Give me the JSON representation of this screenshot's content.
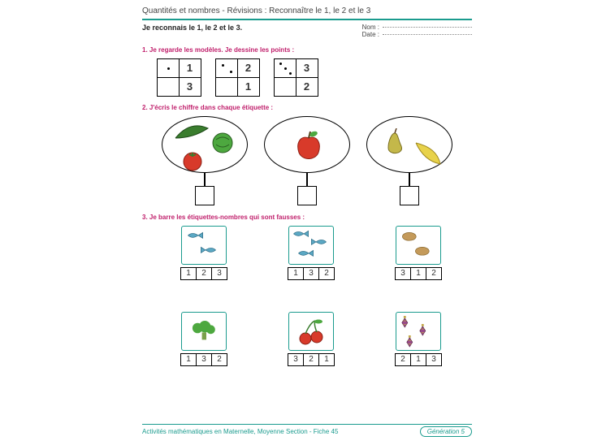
{
  "header": {
    "title": "Quantités et nombres - Révisions : Reconnaître le 1, le 2 et le 3",
    "subtitle": "Je reconnais le 1, le 2 et le 3.",
    "name_label": "Nom :",
    "date_label": "Date :"
  },
  "colors": {
    "accent": "#1a9b8e",
    "instruction": "#c0206c",
    "box": "#000000"
  },
  "ex1": {
    "instruction": "1. Je regarde les modèles. Je dessine les points :",
    "pairs": [
      {
        "top_dots": 1,
        "top_num": "1",
        "bottom_num": "3"
      },
      {
        "top_dots": 2,
        "top_num": "2",
        "bottom_num": "1"
      },
      {
        "top_dots": 3,
        "top_num": "3",
        "bottom_num": "2"
      }
    ]
  },
  "ex2": {
    "instruction": "2. J'écris le chiffre dans chaque étiquette :",
    "groups": [
      {
        "items": [
          "cucumber",
          "lettuce",
          "tomato"
        ]
      },
      {
        "items": [
          "apple"
        ]
      },
      {
        "items": [
          "pear",
          "banana"
        ]
      }
    ]
  },
  "ex3": {
    "instruction": "3. Je barre les étiquettes-nombres qui sont fausses :",
    "items": [
      {
        "icon": "fish",
        "count": 2,
        "labels": [
          "1",
          "2",
          "3"
        ]
      },
      {
        "icon": "fish",
        "count": 3,
        "labels": [
          "1",
          "3",
          "2"
        ]
      },
      {
        "icon": "potato",
        "count": 2,
        "labels": [
          "3",
          "1",
          "2"
        ]
      },
      {
        "icon": "broccoli",
        "count": 1,
        "labels": [
          "1",
          "3",
          "2"
        ]
      },
      {
        "icon": "cherry",
        "count": 2,
        "labels": [
          "3",
          "2",
          "1"
        ]
      },
      {
        "icon": "ornament",
        "count": 3,
        "labels": [
          "2",
          "1",
          "3"
        ]
      }
    ]
  },
  "footer": {
    "text": "Activités mathématiques en Maternelle, Moyenne Section - Fiche 45",
    "badge": "Génération 5"
  }
}
